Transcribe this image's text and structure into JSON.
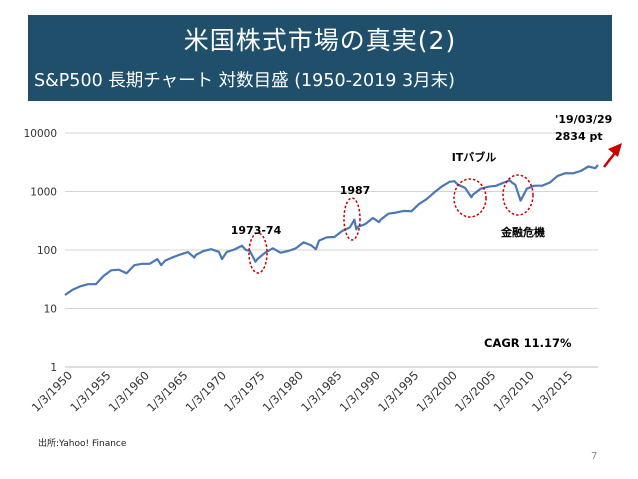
{
  "slide": {
    "title": "米国株式市場の真実(2)",
    "subtitle": "S&P500 長期チャート 対数目盛 (1950-2019 3月末)",
    "source": "出所:Yahoo! Finance",
    "page_number": "7"
  },
  "chart_data": {
    "type": "line",
    "title": "",
    "xlabel": "",
    "ylabel": "",
    "y_scale": "log",
    "ylim": [
      1,
      10000
    ],
    "y_ticks": [
      1,
      10,
      100,
      1000,
      10000
    ],
    "y_tick_labels": [
      "1",
      "10",
      "100",
      "1000",
      "10000"
    ],
    "xlim": [
      1950,
      2019.25
    ],
    "x_ticks": [
      1950,
      1955,
      1960,
      1965,
      1970,
      1975,
      1980,
      1985,
      1990,
      1995,
      2000,
      2005,
      2010,
      2015
    ],
    "x_tick_labels": [
      "1/3/1950",
      "1/3/1955",
      "1/3/1960",
      "1/3/1965",
      "1/3/1970",
      "1/3/1975",
      "1/3/1980",
      "1/3/1985",
      "1/3/1990",
      "1/3/1995",
      "1/3/2000",
      "1/3/2005",
      "1/3/2010",
      "1/3/2015"
    ],
    "grid": "horizontal",
    "line_color": "#4a78b5",
    "series": [
      {
        "x": [
          1950,
          1951,
          1952,
          1953,
          1954,
          1955,
          1956,
          1957,
          1958,
          1959,
          1960,
          1961,
          1962,
          1962.5,
          1963,
          1964,
          1965,
          1966,
          1966.8,
          1967,
          1968,
          1969,
          1970,
          1970.4,
          1971,
          1972,
          1973,
          1973.5,
          1974,
          1974.75,
          1975,
          1976,
          1977,
          1978,
          1979,
          1980,
          1981,
          1982,
          1982.6,
          1983,
          1984,
          1985,
          1986,
          1987,
          1987.6,
          1987.85,
          1988,
          1989,
          1990,
          1990.8,
          1991,
          1992,
          1993,
          1994,
          1995,
          1996,
          1997,
          1998,
          1999,
          2000,
          2000.6,
          2001,
          2002,
          2002.8,
          2003,
          2004,
          2005,
          2006,
          2007,
          2007.8,
          2008,
          2008.5,
          2009.2,
          2010,
          2011,
          2012,
          2013,
          2014,
          2015,
          2016,
          2017,
          2018,
          2018.9,
          2019.25
        ],
        "values": [
          17,
          21,
          24,
          26,
          26,
          36,
          45,
          46,
          40,
          55,
          58,
          58,
          70,
          55,
          66,
          75,
          84,
          92,
          74,
          82,
          96,
          103,
          93,
          70,
          92,
          102,
          118,
          100,
          97,
          63,
          70,
          90,
          107,
          90,
          96,
          107,
          135,
          120,
          103,
          145,
          164,
          167,
          211,
          242,
          330,
          225,
          247,
          277,
          353,
          300,
          330,
          417,
          435,
          466,
          459,
          615,
          740,
          970,
          1229,
          1469,
          1500,
          1320,
          1148,
          800,
          880,
          1112,
          1210,
          1250,
          1418,
          1550,
          1450,
          1300,
          700,
          1115,
          1257,
          1258,
          1426,
          1846,
          2058,
          2044,
          2239,
          2673,
          2500,
          2834
        ]
      }
    ],
    "annotations": {
      "a1973": "1973-74",
      "a1987": "1987",
      "it_bubble": "ITバブル",
      "financial_crisis": "金融危機",
      "last_date": "'19/03/29",
      "last_value": "2834 pt",
      "cagr": "CAGR 11.17%"
    },
    "annotation_color": "#cc0000"
  }
}
